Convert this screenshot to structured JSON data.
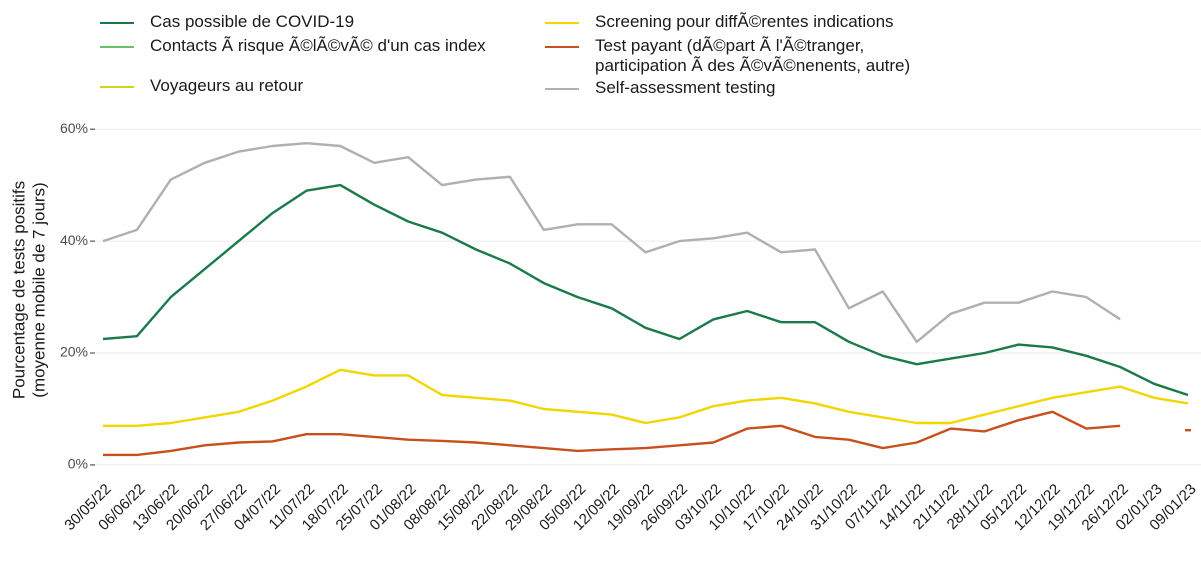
{
  "chart_data": {
    "type": "line",
    "ylabel": [
      "Pourcentage de tests positifs",
      "(moyenne mobile de 7 jours)"
    ],
    "categories": [
      "30/05/22",
      "06/06/22",
      "13/06/22",
      "20/06/22",
      "27/06/22",
      "04/07/22",
      "11/07/22",
      "18/07/22",
      "25/07/22",
      "01/08/22",
      "08/08/22",
      "15/08/22",
      "22/08/22",
      "29/08/22",
      "05/09/22",
      "12/09/22",
      "19/09/22",
      "26/09/22",
      "03/10/22",
      "10/10/22",
      "17/10/22",
      "24/10/22",
      "31/10/22",
      "07/11/22",
      "14/11/22",
      "21/11/22",
      "28/11/22",
      "05/12/22",
      "12/12/22",
      "19/12/22",
      "26/12/22",
      "02/01/23",
      "09/01/23"
    ],
    "series": [
      {
        "name": "Cas possible de COVID-19",
        "color": "#1a7a4a",
        "values": [
          22.5,
          23,
          30,
          35,
          40,
          45,
          49,
          50,
          46.5,
          43.5,
          41.5,
          38.5,
          36,
          32.5,
          30,
          28,
          24.5,
          22.5,
          26,
          27.5,
          25.5,
          25.5,
          22,
          19.5,
          18,
          19,
          20,
          21.5,
          21,
          19.5,
          17.5,
          14.5,
          12.5
        ]
      },
      {
        "name": "Contacts Ã  risque Ã©lÃ©vÃ© d'un cas index",
        "color": "#66c266",
        "values": [
          null,
          null,
          null,
          null,
          null,
          null,
          null,
          null,
          null,
          null,
          null,
          null,
          null,
          null,
          null,
          null,
          null,
          null,
          null,
          null,
          null,
          null,
          null,
          null,
          null,
          null,
          null,
          null,
          null,
          null,
          null,
          null,
          null
        ]
      },
      {
        "name": "Voyageurs au retour",
        "color": "#d4d41a",
        "values": [
          null,
          null,
          null,
          null,
          null,
          null,
          null,
          null,
          null,
          null,
          null,
          null,
          null,
          null,
          null,
          null,
          null,
          null,
          null,
          null,
          null,
          null,
          null,
          null,
          null,
          null,
          null,
          null,
          null,
          null,
          null,
          null,
          null
        ]
      },
      {
        "name": "Screening pour diffÃ©rentes indications",
        "color": "#f2d600",
        "values": [
          7,
          7,
          7.5,
          8.5,
          9.5,
          11.5,
          14,
          17,
          16,
          16,
          12.5,
          12,
          11.5,
          10,
          9.5,
          9,
          7.5,
          8.5,
          10.5,
          11.5,
          12,
          11,
          9.5,
          8.5,
          7.5,
          7.5,
          9,
          10.5,
          12,
          13,
          14,
          12,
          11
        ]
      },
      {
        "name": "Test payant (dÃ©part Ã  l'Ã©tranger,\nparticipation Ã  des Ã©vÃ©nenents, autre)",
        "color": "#c8501e",
        "values": [
          1.8,
          1.8,
          2.5,
          3.5,
          4,
          4.2,
          5.5,
          5.5,
          5,
          4.5,
          4.3,
          4,
          3.5,
          3,
          2.5,
          2.8,
          3,
          3.5,
          4,
          6.5,
          7,
          5,
          4.5,
          3,
          4,
          6.5,
          6,
          8,
          9.5,
          6.5,
          7,
          null,
          6.2
        ]
      },
      {
        "name": "Self-assessment testing",
        "color": "#b0b0b0",
        "values": [
          40,
          42,
          51,
          54,
          56,
          57,
          57.5,
          57,
          54,
          55,
          50,
          51,
          51.5,
          42,
          43,
          43,
          38,
          40,
          40.5,
          41.5,
          38,
          38.5,
          28,
          31,
          22,
          27,
          29,
          29,
          31,
          30,
          26,
          null,
          null
        ]
      }
    ],
    "ylim": [
      -1.8,
      62
    ],
    "yticks": [
      {
        "value": 0,
        "label": "0%"
      },
      {
        "value": 20,
        "label": "20%"
      },
      {
        "value": 40,
        "label": "40%"
      },
      {
        "value": 60,
        "label": "60%"
      }
    ],
    "grid": true
  }
}
